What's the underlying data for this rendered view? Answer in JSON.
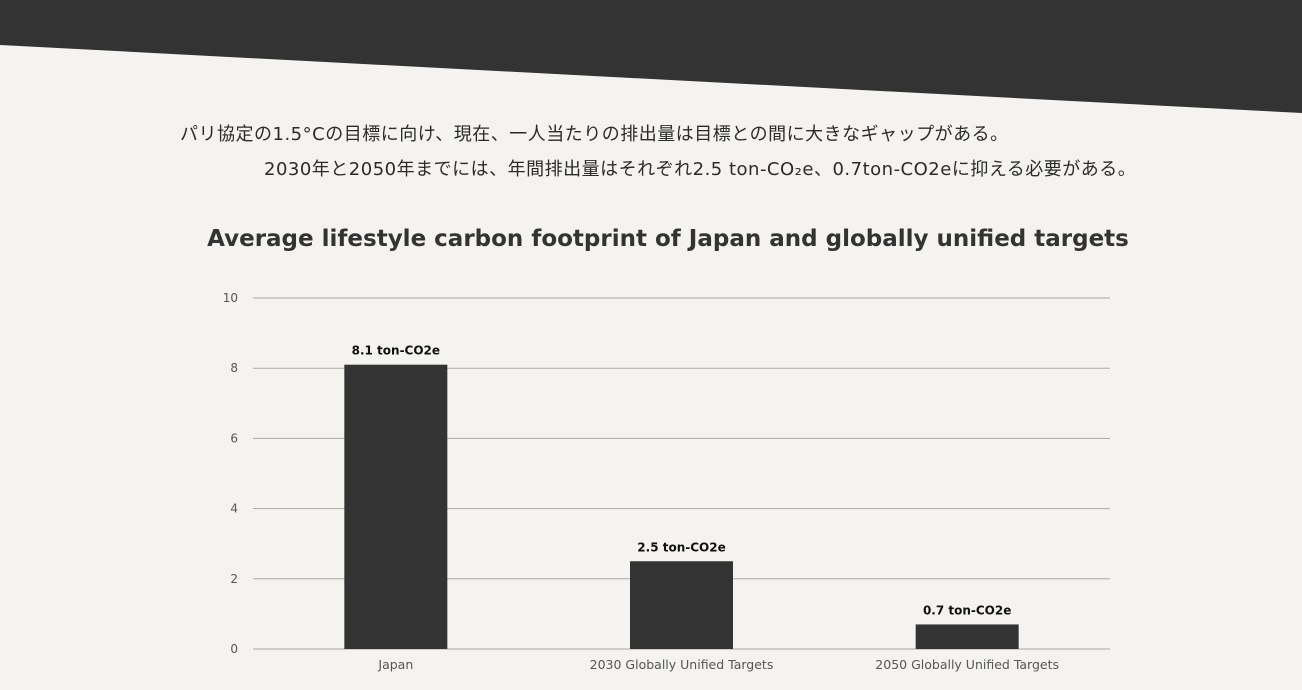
{
  "colors": {
    "banner": "#333333",
    "background": "#f4f3ef",
    "bar": "#333333",
    "grid": "#a9a9a9"
  },
  "caption": {
    "line1": "パリ協定の1.5°Cの目標に向け、現在、一人当たりの排出量は目標との間に大きなギャップがある。",
    "line2": "2030年と2050年までには、年間排出量はそれぞれ2.5 ton-CO₂e、0.7ton-CO2eに抑える必要がある。"
  },
  "chart_data": {
    "type": "bar",
    "title": "Average lifestyle carbon footprint of Japan and globally unified targets",
    "categories": [
      "Japan",
      "2030 Globally Unified Targets",
      "2050 Globally Unified Targets"
    ],
    "values": [
      8.1,
      2.5,
      0.7
    ],
    "data_labels": [
      "8.1 ton-CO2e",
      "2.5 ton-CO2e",
      "0.7 ton-CO2e"
    ],
    "yticks": [
      0,
      2,
      4,
      6,
      8,
      10
    ],
    "ylim": [
      0,
      10
    ],
    "grid": true,
    "legend": "none"
  }
}
